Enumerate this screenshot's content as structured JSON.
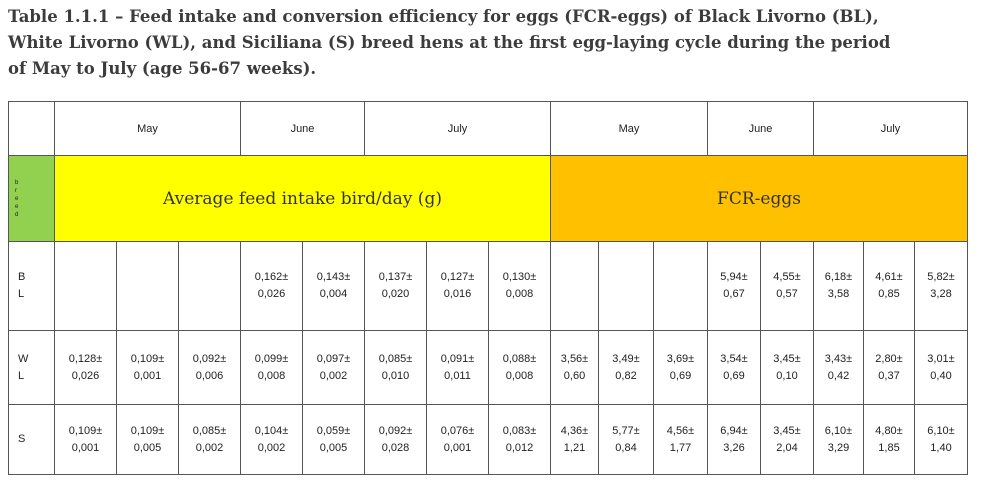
{
  "caption": {
    "line1": "Table 1.1.1 – Feed intake and conversion efficiency for eggs (FCR-eggs) of Black Livorno (BL),",
    "line2": "White Livorno (WL), and Siciliana (S) breed hens at the first egg-laying cycle during the period",
    "line3": "of May to July (age 56-67 weeks)."
  },
  "header_months": [
    "May",
    "June",
    "July",
    "May",
    "June",
    "July"
  ],
  "band": {
    "breed_letters": [
      "b",
      "r",
      "e",
      "e",
      "d"
    ],
    "feed_label": "Average feed intake bird/day (g)",
    "fcr_label": "FCR-eggs",
    "feed_color": "#ffff00",
    "fcr_color": "#ffc000",
    "breed_color": "#92d050"
  },
  "rows": [
    {
      "breed_lines": [
        "B",
        "L"
      ],
      "cells": [
        [
          "",
          ""
        ],
        [
          "",
          ""
        ],
        [
          "",
          ""
        ],
        [
          "0,162±",
          "0,026"
        ],
        [
          "0,143±",
          "0,004"
        ],
        [
          "0,137±",
          "0,020"
        ],
        [
          "0,127±",
          "0,016"
        ],
        [
          "0,130±",
          "0,008"
        ],
        [
          "",
          ""
        ],
        [
          "",
          ""
        ],
        [
          "",
          ""
        ],
        [
          "5,94±",
          "0,67"
        ],
        [
          "4,55±",
          "0,57"
        ],
        [
          "6,18±",
          "3,58"
        ],
        [
          "4,61±",
          "0,85"
        ],
        [
          "5,82±",
          "3,28"
        ]
      ]
    },
    {
      "breed_lines": [
        "W",
        "L"
      ],
      "cells": [
        [
          "0,128±",
          "0,026"
        ],
        [
          "0,109±",
          "0,001"
        ],
        [
          "0,092±",
          "0,006"
        ],
        [
          "0,099±",
          "0,008"
        ],
        [
          "0,097±",
          "0,002"
        ],
        [
          "0,085±",
          "0,010"
        ],
        [
          "0,091±",
          "0,011"
        ],
        [
          "0,088±",
          "0,008"
        ],
        [
          "3,56±",
          "0,60"
        ],
        [
          "3,49±",
          "0,82"
        ],
        [
          "3,69±",
          "0,69"
        ],
        [
          "3,54±",
          "0,69"
        ],
        [
          "3,45±",
          "0,10"
        ],
        [
          "3,43±",
          "0,42"
        ],
        [
          "2,80±",
          "0,37"
        ],
        [
          "3,01±",
          "0,40"
        ]
      ]
    },
    {
      "breed_lines": [
        "S"
      ],
      "cells": [
        [
          "0,109±",
          "0,001"
        ],
        [
          "0,109±",
          "0,005"
        ],
        [
          "0,085±",
          "0,002"
        ],
        [
          "0,104±",
          "0,002"
        ],
        [
          "0,059±",
          "0,005"
        ],
        [
          "0,092±",
          "0,028"
        ],
        [
          "0,076±",
          "0,001"
        ],
        [
          "0,083±",
          "0,012"
        ],
        [
          "4,36±",
          "1,21"
        ],
        [
          "5,77±",
          "0,84"
        ],
        [
          "4,56±",
          "1,77"
        ],
        [
          "6,94±",
          "3,26"
        ],
        [
          "3,45±",
          "2,04"
        ],
        [
          "6,10±",
          "3,29"
        ],
        [
          "4,80±",
          "1,85"
        ],
        [
          "6,10±",
          "1,40"
        ]
      ]
    }
  ]
}
